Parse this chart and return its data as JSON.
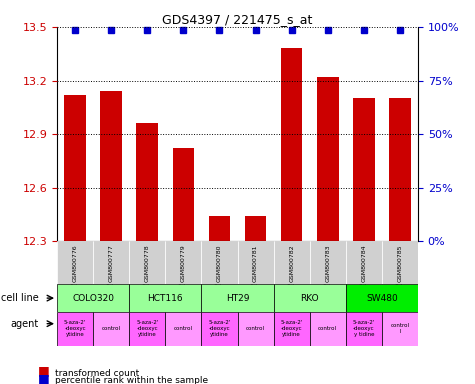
{
  "title": "GDS4397 / 221475_s_at",
  "samples": [
    "GSM800776",
    "GSM800777",
    "GSM800778",
    "GSM800779",
    "GSM800780",
    "GSM800781",
    "GSM800782",
    "GSM800783",
    "GSM800784",
    "GSM800785"
  ],
  "transformed_count": [
    13.12,
    13.14,
    12.96,
    12.82,
    12.44,
    12.44,
    13.38,
    13.22,
    13.1,
    13.1
  ],
  "percentile_rank": [
    100,
    100,
    100,
    100,
    100,
    100,
    100,
    100,
    100,
    100
  ],
  "percentile_y": [
    13.5,
    13.5,
    13.5,
    13.5,
    13.5,
    13.5,
    13.5,
    13.5,
    13.5,
    13.5
  ],
  "bar_color": "#cc0000",
  "dot_color": "#0000cc",
  "ylim_left": [
    12.3,
    13.5
  ],
  "yticks_left": [
    12.3,
    12.6,
    12.9,
    13.2,
    13.5
  ],
  "ylim_right": [
    0,
    100
  ],
  "yticks_right": [
    0,
    25,
    50,
    75,
    100
  ],
  "yticklabels_right": [
    "0%",
    "25%",
    "50%",
    "75%",
    "100%"
  ],
  "cell_lines": [
    {
      "name": "COLO320",
      "start": 0,
      "end": 2,
      "color": "#99ff99"
    },
    {
      "name": "HCT116",
      "start": 2,
      "end": 4,
      "color": "#99ff99"
    },
    {
      "name": "HT29",
      "start": 4,
      "end": 6,
      "color": "#99ff99"
    },
    {
      "name": "RKO",
      "start": 6,
      "end": 8,
      "color": "#99ff99"
    },
    {
      "name": "SW480",
      "start": 8,
      "end": 10,
      "color": "#00ee00"
    }
  ],
  "agents": [
    {
      "name": "5-aza-2'\n-deoxyc\nytidine",
      "start": 0,
      "end": 1,
      "color": "#ff66ff"
    },
    {
      "name": "control",
      "start": 1,
      "end": 2,
      "color": "#ff99ff"
    },
    {
      "name": "5-aza-2'\n-deoxyc\nytidine",
      "start": 2,
      "end": 3,
      "color": "#ff66ff"
    },
    {
      "name": "control",
      "start": 3,
      "end": 4,
      "color": "#ff99ff"
    },
    {
      "name": "5-aza-2'\n-deoxyc\nytidine",
      "start": 4,
      "end": 5,
      "color": "#ff66ff"
    },
    {
      "name": "control",
      "start": 5,
      "end": 6,
      "color": "#ff99ff"
    },
    {
      "name": "5-aza-2'\n-deoxyc\nytidine",
      "start": 6,
      "end": 7,
      "color": "#ff66ff"
    },
    {
      "name": "control",
      "start": 7,
      "end": 8,
      "color": "#ff99ff"
    },
    {
      "name": "5-aza-2'\n-deoxyc\ny tidine",
      "start": 8,
      "end": 9,
      "color": "#ff66ff"
    },
    {
      "name": "control\n l",
      "start": 9,
      "end": 10,
      "color": "#ff99ff"
    }
  ],
  "background_color": "#ffffff",
  "grid_color": "#000000",
  "tick_label_color_left": "#cc0000",
  "tick_label_color_right": "#0000cc"
}
